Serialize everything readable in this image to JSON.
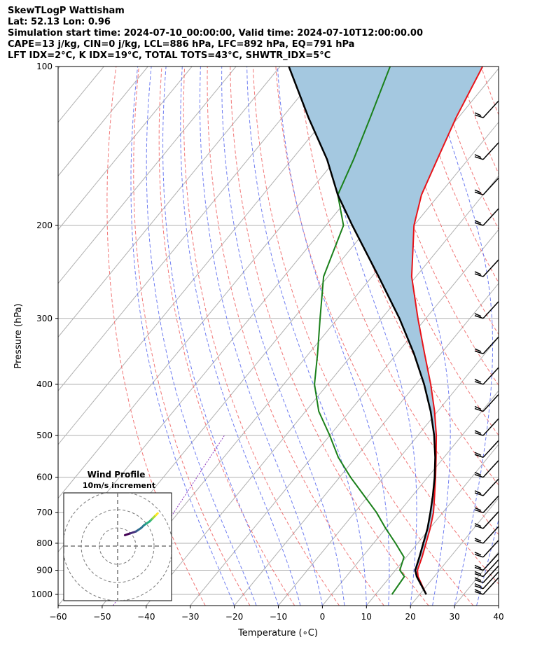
{
  "header": {
    "title": "SkewTLogP Wattisham",
    "latlon": "Lat: 52.13   Lon: 0.96",
    "times": "Simulation start time: 2024-07-10_00:00:00, Valid time: 2024-07-10T12:00:00.00",
    "indices1": "CAPE=13 j/kg, CIN=0 j/kg, LCL=886 hPa, LFC=892 hPa, EQ=791 hPa",
    "indices2": "LFT IDX=2°C, K IDX=19°C, TOTAL TOTS=43°C, SHWTR_IDX=5°C"
  },
  "colors": {
    "temperature": "#e8141a",
    "dewpoint": "#1a801a",
    "parcel": "#000000",
    "cape_fill": "#a4c8e0",
    "dry_adiabats": "#f07070",
    "moist_adiabats": "#6070f0",
    "mixing_ratio": "#9040c0",
    "isotherms": "#b0b0b0"
  },
  "chart_data": {
    "type": "skew-t",
    "xlabel": "Temperature (∘C)",
    "ylabel": "Pressure (hPa)",
    "xlim": [
      -60,
      40
    ],
    "ylim": [
      1050,
      100
    ],
    "x_ticks": [
      "−60",
      "−50",
      "−40",
      "−30",
      "−20",
      "−10",
      "0",
      "10",
      "20",
      "30",
      "40"
    ],
    "x_tick_values": [
      -60,
      -50,
      -40,
      -30,
      -20,
      -10,
      0,
      10,
      20,
      30,
      40
    ],
    "y_ticks": [
      "1000",
      "900",
      "800",
      "700",
      "600",
      "500",
      "400",
      "300",
      "200",
      "100"
    ],
    "y_tick_values": [
      1000,
      900,
      800,
      700,
      600,
      500,
      400,
      300,
      200,
      100
    ],
    "grid": true,
    "cape_shading": true,
    "pressure": [
      1000,
      925,
      900,
      850,
      800,
      750,
      700,
      650,
      600,
      550,
      500,
      450,
      400,
      350,
      300,
      250,
      200,
      175,
      150,
      125,
      100
    ],
    "temperature": [
      21.5,
      16.3,
      15.0,
      13.6,
      11.9,
      10.1,
      7.9,
      5.0,
      1.8,
      -1.8,
      -5.8,
      -10.7,
      -16.6,
      -23.7,
      -31.8,
      -41.0,
      -50.0,
      -54.0,
      -57.0,
      -60.5,
      -64.0
    ],
    "dewpoint": [
      13.7,
      13.2,
      11.0,
      9.5,
      5.0,
      0.0,
      -5.0,
      -11.0,
      -17.5,
      -24.0,
      -30.0,
      -37.0,
      -43.0,
      -48.0,
      -54.0,
      -61.0,
      -66.0,
      -73.0,
      -76.0,
      -80.0,
      -85.0
    ],
    "parcel": [
      21.5,
      16.0,
      14.5,
      13.0,
      11.3,
      9.5,
      7.2,
      4.6,
      1.6,
      -2.0,
      -6.3,
      -11.6,
      -18.1,
      -26.1,
      -36.0,
      -48.5,
      -64.0,
      -73.0,
      -82.0,
      -94.0,
      -108.0
    ],
    "wind_barb_pressures": [
      1000,
      975,
      950,
      925,
      900,
      850,
      800,
      750,
      700,
      650,
      600,
      550,
      500,
      450,
      400,
      350,
      300,
      250,
      200,
      175,
      150,
      125
    ],
    "hodograph": {
      "title": "Wind Profile",
      "subtitle": "10m/s increment",
      "rings_ms": [
        10,
        20,
        30
      ],
      "u": [
        4.0,
        5.5,
        7.0,
        8.5,
        10.0,
        11.5,
        13.0,
        14.5,
        16.0,
        17.5,
        18.5,
        19.5,
        20.5,
        21.0,
        22.0
      ],
      "v": [
        6.0,
        6.5,
        7.0,
        7.5,
        8.0,
        9.0,
        10.0,
        11.5,
        12.5,
        13.5,
        14.5,
        15.5,
        16.5,
        17.0,
        18.0
      ]
    }
  }
}
